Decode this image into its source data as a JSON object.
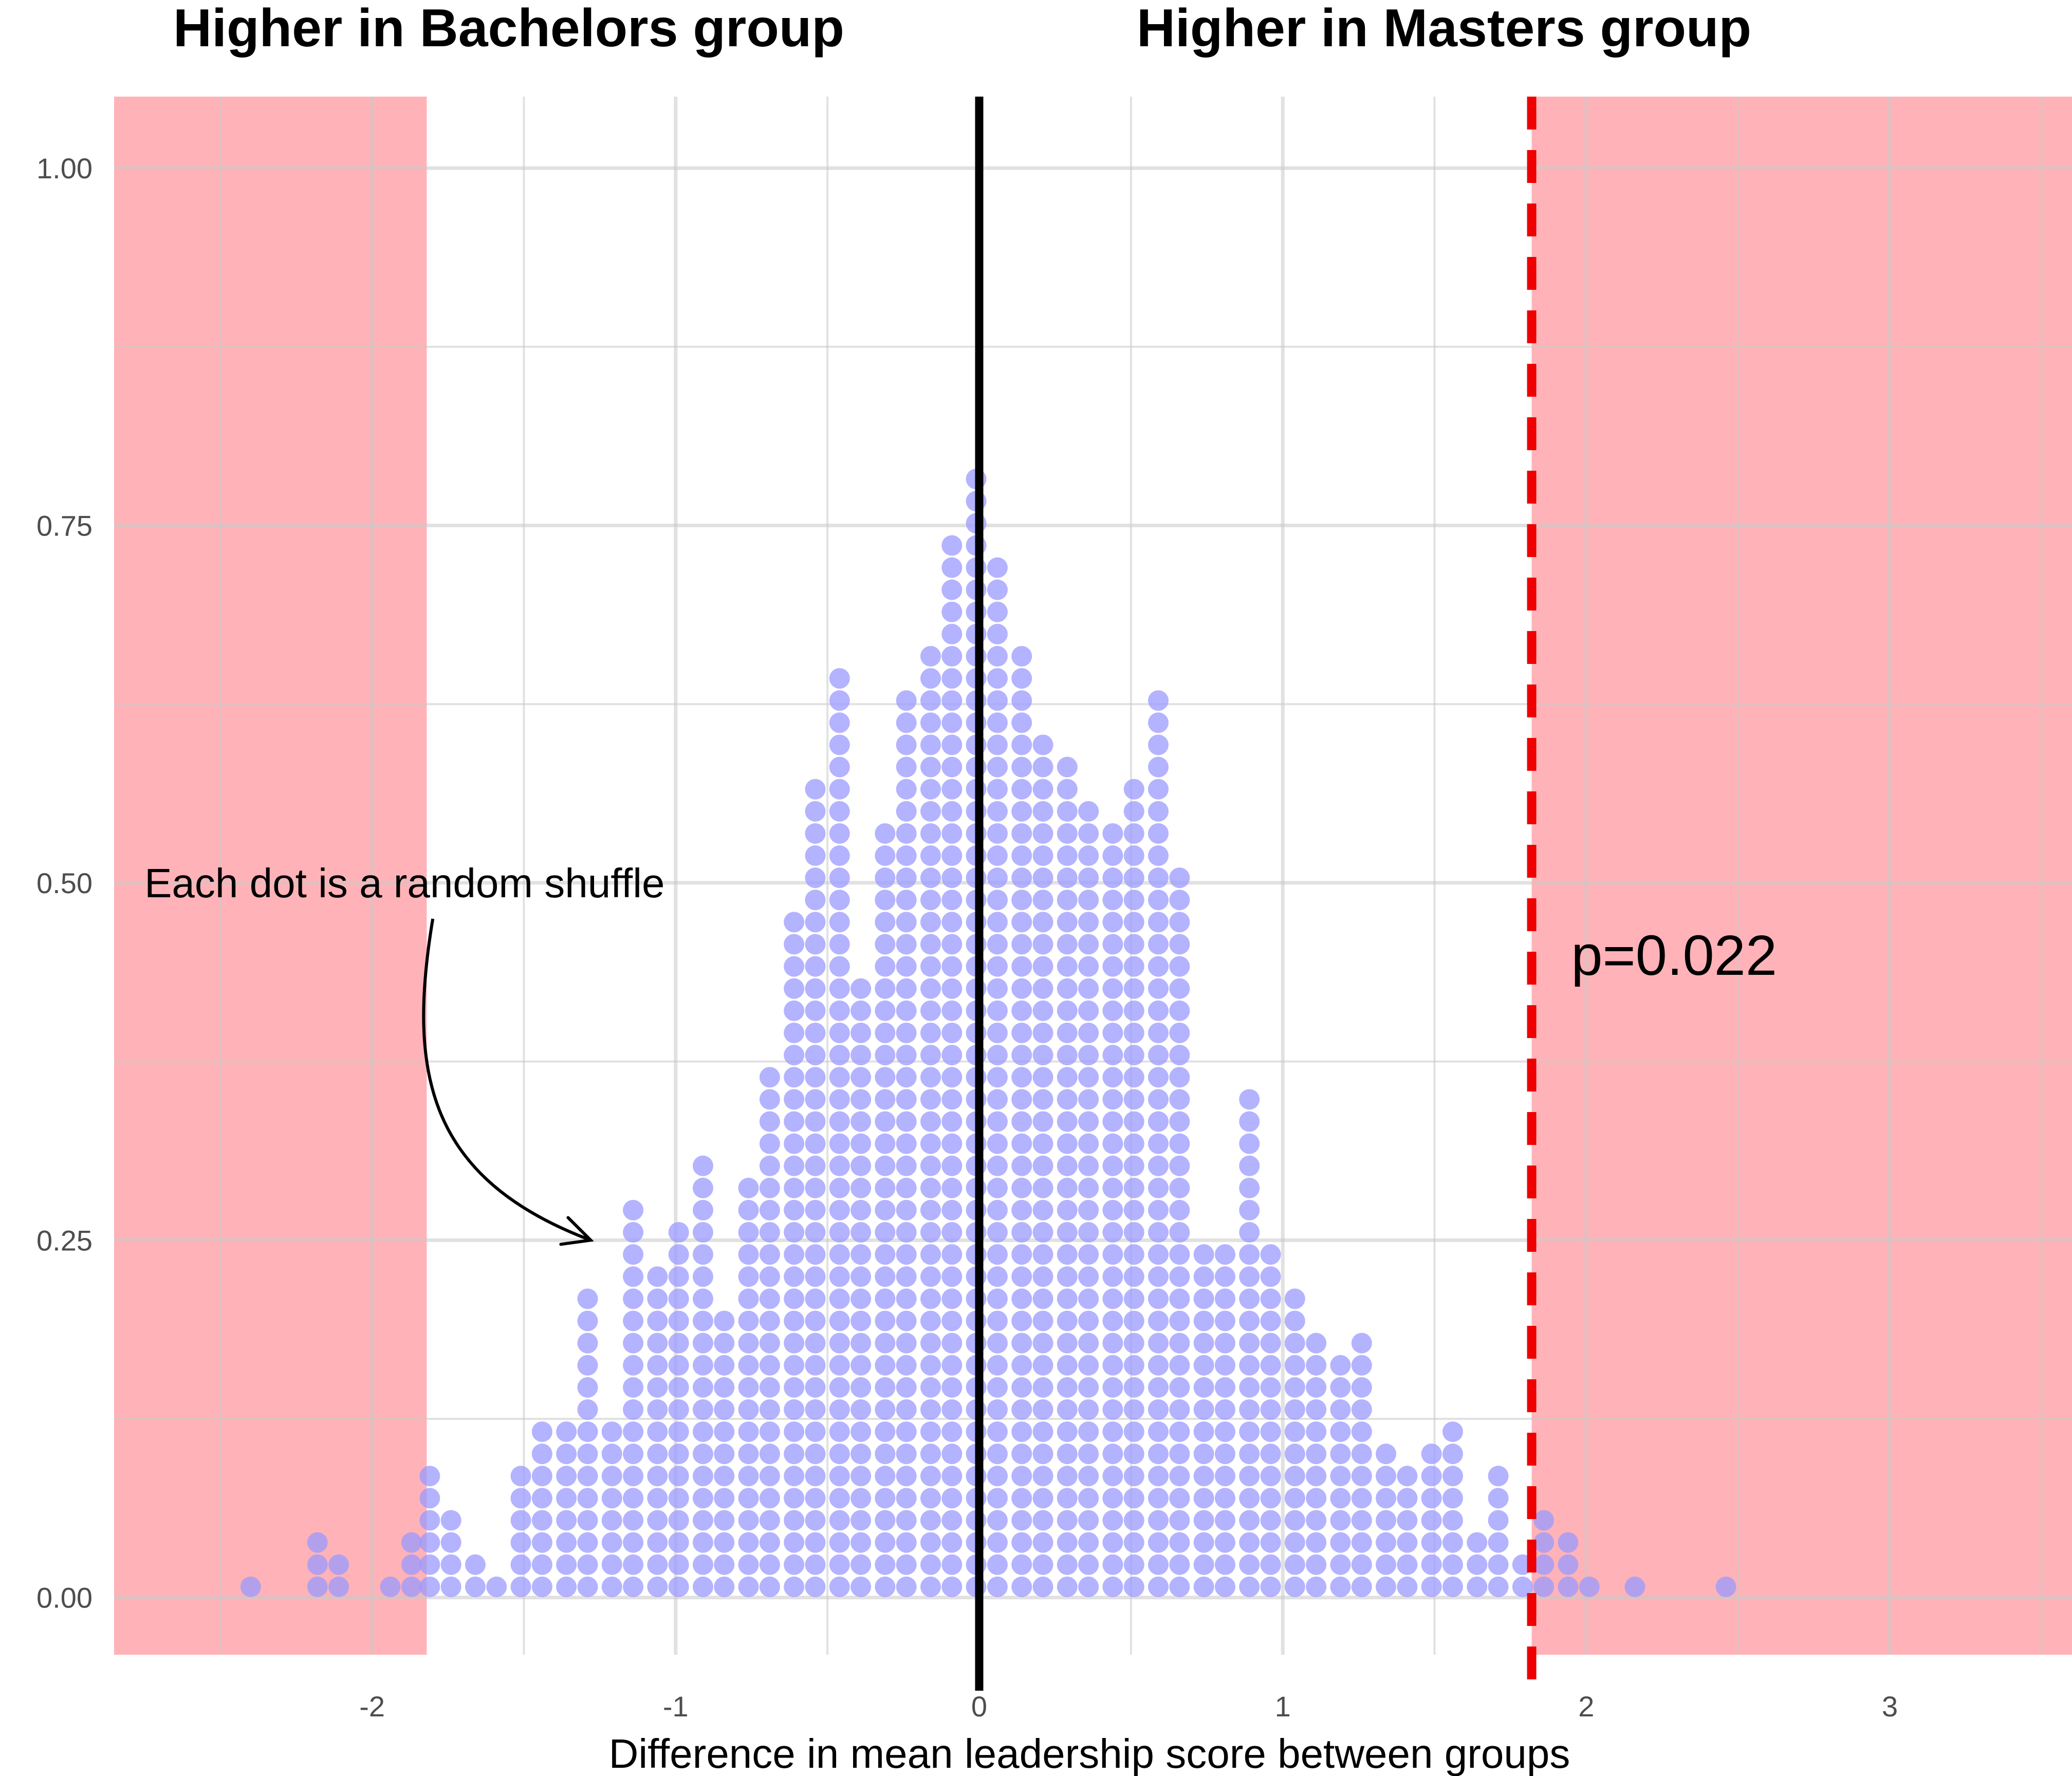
{
  "chart_data": {
    "type": "scatter",
    "subtype": "dotplot",
    "headers": {
      "left": "Higher in Bachelors group",
      "right": "Higher in Masters group"
    },
    "xlabel": "Difference in mean leadership score between groups",
    "ylabel": "",
    "xlim": [
      -2.85,
      3.6
    ],
    "ylim": [
      -0.04,
      1.05
    ],
    "x_ticks": [
      -2,
      -1,
      0,
      1,
      2,
      3
    ],
    "x_tick_labels": [
      "-2",
      "-1",
      "0",
      "1",
      "2",
      "3"
    ],
    "y_ticks": [
      0.0,
      0.25,
      0.5,
      0.75,
      1.0
    ],
    "y_tick_labels": [
      "0.00",
      "0.25",
      "0.50",
      "0.75",
      "1.00"
    ],
    "grid": true,
    "reference_line": {
      "x": 0,
      "color": "#000000",
      "style": "solid"
    },
    "observed_line": {
      "x": 1.82,
      "color": "#ee0000",
      "style": "dashed"
    },
    "shaded_regions": [
      {
        "from": -2.85,
        "to": -1.82,
        "color": "#ffb3b8"
      },
      {
        "from": 1.82,
        "to": 3.6,
        "color": "#ffb3b8"
      }
    ],
    "annotation": {
      "text": "Each dot is a random shuffle",
      "text_x": -2.75,
      "text_y": 0.5,
      "arrow_to_x": -1.28,
      "arrow_to_y": 0.25
    },
    "p_value_label": {
      "text": "p=0.022",
      "x": 1.95,
      "y": 0.45
    },
    "dot_color": "#9999ff",
    "dot_y_step": 0.0155,
    "dot_y_start": 0.0075,
    "stacks": [
      {
        "x": -2.4,
        "count": 1
      },
      {
        "x": -2.18,
        "count": 3
      },
      {
        "x": -2.11,
        "count": 2
      },
      {
        "x": -1.94,
        "count": 1
      },
      {
        "x": -1.87,
        "count": 3
      },
      {
        "x": -1.81,
        "count": 6
      },
      {
        "x": -1.74,
        "count": 4
      },
      {
        "x": -1.66,
        "count": 2
      },
      {
        "x": -1.59,
        "count": 1
      },
      {
        "x": -1.51,
        "count": 6
      },
      {
        "x": -1.44,
        "count": 8
      },
      {
        "x": -1.36,
        "count": 8
      },
      {
        "x": -1.29,
        "count": 14
      },
      {
        "x": -1.21,
        "count": 8
      },
      {
        "x": -1.14,
        "count": 18
      },
      {
        "x": -1.06,
        "count": 15
      },
      {
        "x": -0.99,
        "count": 17
      },
      {
        "x": -0.91,
        "count": 20
      },
      {
        "x": -0.84,
        "count": 13
      },
      {
        "x": -0.76,
        "count": 19
      },
      {
        "x": -0.69,
        "count": 24
      },
      {
        "x": -0.61,
        "count": 31
      },
      {
        "x": -0.54,
        "count": 37
      },
      {
        "x": -0.46,
        "count": 42
      },
      {
        "x": -0.39,
        "count": 28
      },
      {
        "x": -0.31,
        "count": 35
      },
      {
        "x": -0.24,
        "count": 41
      },
      {
        "x": -0.16,
        "count": 43
      },
      {
        "x": -0.09,
        "count": 48
      },
      {
        "x": -0.01,
        "count": 51
      },
      {
        "x": 0.06,
        "count": 47
      },
      {
        "x": 0.14,
        "count": 43
      },
      {
        "x": 0.21,
        "count": 39
      },
      {
        "x": 0.29,
        "count": 38
      },
      {
        "x": 0.36,
        "count": 36
      },
      {
        "x": 0.44,
        "count": 35
      },
      {
        "x": 0.51,
        "count": 37
      },
      {
        "x": 0.59,
        "count": 41
      },
      {
        "x": 0.66,
        "count": 33
      },
      {
        "x": 0.74,
        "count": 16
      },
      {
        "x": 0.81,
        "count": 16
      },
      {
        "x": 0.89,
        "count": 23
      },
      {
        "x": 0.96,
        "count": 16
      },
      {
        "x": 1.04,
        "count": 14
      },
      {
        "x": 1.11,
        "count": 12
      },
      {
        "x": 1.19,
        "count": 11
      },
      {
        "x": 1.26,
        "count": 12
      },
      {
        "x": 1.34,
        "count": 7
      },
      {
        "x": 1.41,
        "count": 6
      },
      {
        "x": 1.49,
        "count": 7
      },
      {
        "x": 1.56,
        "count": 8
      },
      {
        "x": 1.64,
        "count": 3
      },
      {
        "x": 1.71,
        "count": 6
      },
      {
        "x": 1.79,
        "count": 2
      },
      {
        "x": 1.86,
        "count": 4
      },
      {
        "x": 1.94,
        "count": 3
      },
      {
        "x": 2.01,
        "count": 1
      },
      {
        "x": 2.16,
        "count": 1
      },
      {
        "x": 2.46,
        "count": 1
      }
    ]
  }
}
